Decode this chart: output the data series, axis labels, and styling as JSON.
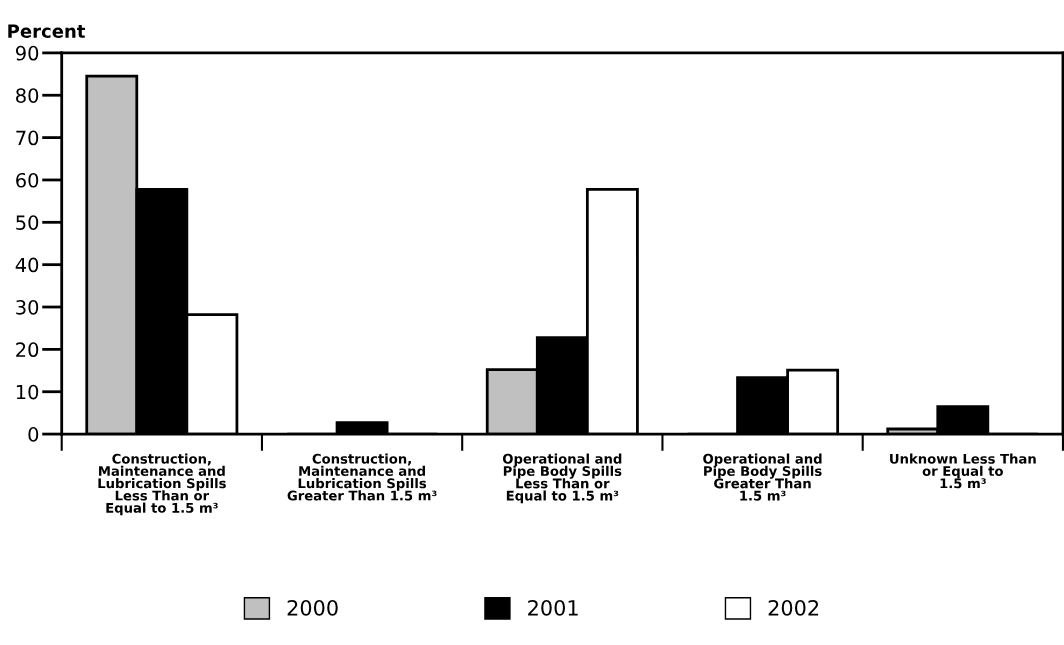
{
  "chart_data": {
    "type": "bar",
    "ylabel": "Percent",
    "categories": [
      "Construction,\nMaintenance and\nLubrication Spills\nLess Than or\nEqual to 1.5 m³",
      "Construction,\nMaintenance and\nLubrication Spills\nGreater Than 1.5 m³",
      "Operational and\nPipe Body Spills\nLess Than or\nEqual to 1.5 m³",
      "Operational and\nPipe Body Spills\nGreater Than\n1.5 m³",
      "Unknown Less Than\nor Equal to\n1.5 m³"
    ],
    "series": [
      {
        "name": "2000",
        "color": "#c0c0c0",
        "values": [
          84.5,
          0,
          15.2,
          0,
          1.2
        ]
      },
      {
        "name": "2001",
        "color": "#000000",
        "values": [
          57.8,
          2.7,
          22.8,
          13.3,
          6.5
        ]
      },
      {
        "name": "2002",
        "color": "#ffffff",
        "values": [
          28.2,
          0,
          57.8,
          15.1,
          0
        ]
      }
    ],
    "ylim": [
      0,
      90
    ],
    "yticks": [
      0,
      10,
      20,
      30,
      40,
      50,
      60,
      70,
      80,
      90
    ],
    "grid": false,
    "legend": "bottom"
  }
}
